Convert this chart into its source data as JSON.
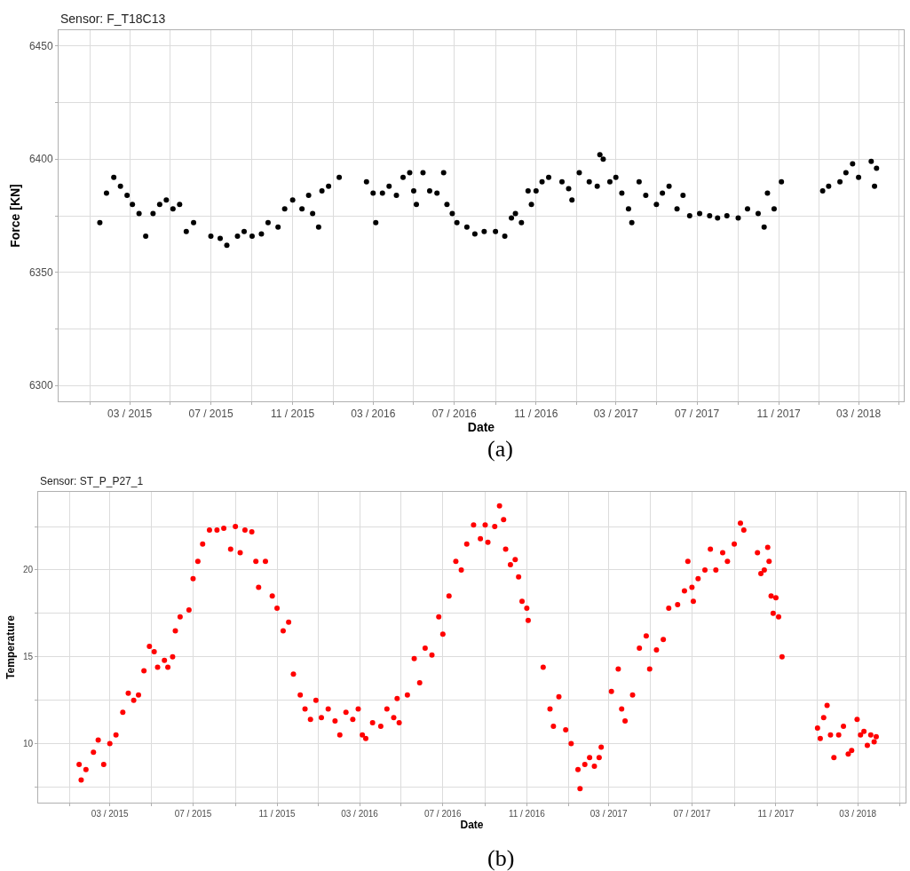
{
  "chart_data": [
    {
      "type": "scatter",
      "title": "Sensor: F_T18C13",
      "xlabel": "Date",
      "ylabel": "Force [KN]",
      "annotations": [
        "(a)"
      ],
      "grid": true,
      "marker": "circle",
      "xlim": [
        "2014-11-14",
        "2018-05-08"
      ],
      "ylim": [
        6293,
        6457
      ],
      "xticks": [
        {
          "value": "2015-01-01",
          "label": null
        },
        {
          "value": "2015-03-01",
          "label": "03 / 2015"
        },
        {
          "value": "2015-05-01",
          "label": null
        },
        {
          "value": "2015-07-01",
          "label": "07 / 2015"
        },
        {
          "value": "2015-09-01",
          "label": null
        },
        {
          "value": "2015-11-01",
          "label": "11 / 2015"
        },
        {
          "value": "2016-01-01",
          "label": null
        },
        {
          "value": "2016-03-01",
          "label": "03 / 2016"
        },
        {
          "value": "2016-05-01",
          "label": null
        },
        {
          "value": "2016-07-01",
          "label": "07 / 2016"
        },
        {
          "value": "2016-09-01",
          "label": null
        },
        {
          "value": "2016-11-01",
          "label": "11 / 2016"
        },
        {
          "value": "2017-01-01",
          "label": null
        },
        {
          "value": "2017-03-01",
          "label": "03 / 2017"
        },
        {
          "value": "2017-05-01",
          "label": null
        },
        {
          "value": "2017-07-01",
          "label": "07 / 2017"
        },
        {
          "value": "2017-09-01",
          "label": null
        },
        {
          "value": "2017-11-01",
          "label": "11 / 2017"
        },
        {
          "value": "2018-01-01",
          "label": null
        },
        {
          "value": "2018-03-01",
          "label": "03 / 2018"
        },
        {
          "value": "2018-05-01",
          "label": null
        }
      ],
      "yticks": [
        6300,
        {
          "value": 6325,
          "label": null
        },
        6350,
        {
          "value": 6375,
          "label": null
        },
        6400,
        {
          "value": 6425,
          "label": null
        },
        6450
      ],
      "series": [
        {
          "color": "#000000",
          "x": [
            "2015-01-15",
            "2015-01-25",
            "2015-02-05",
            "2015-02-15",
            "2015-02-25",
            "2015-03-05",
            "2015-03-15",
            "2015-03-25",
            "2015-04-05",
            "2015-04-15",
            "2015-04-25",
            "2015-05-05",
            "2015-05-15",
            "2015-05-25",
            "2015-06-05",
            "2015-07-01",
            "2015-07-15",
            "2015-07-25",
            "2015-08-10",
            "2015-08-20",
            "2015-09-01",
            "2015-09-15",
            "2015-09-25",
            "2015-10-10",
            "2015-10-20",
            "2015-11-01",
            "2015-11-15",
            "2015-11-25",
            "2015-12-01",
            "2015-12-10",
            "2015-12-15",
            "2015-12-25",
            "2016-01-10",
            "2016-02-20",
            "2016-03-01",
            "2016-03-05",
            "2016-03-15",
            "2016-03-25",
            "2016-04-05",
            "2016-04-15",
            "2016-04-25",
            "2016-05-01",
            "2016-05-05",
            "2016-05-15",
            "2016-05-25",
            "2016-06-05",
            "2016-06-15",
            "2016-06-20",
            "2016-06-28",
            "2016-07-05",
            "2016-07-20",
            "2016-08-01",
            "2016-08-15",
            "2016-09-01",
            "2016-09-15",
            "2016-09-25",
            "2016-10-01",
            "2016-10-10",
            "2016-10-20",
            "2016-10-25",
            "2016-11-01",
            "2016-11-10",
            "2016-11-20",
            "2016-12-10",
            "2016-12-20",
            "2016-12-25",
            "2017-01-05",
            "2017-01-20",
            "2017-02-01",
            "2017-02-05",
            "2017-02-10",
            "2017-02-20",
            "2017-03-01",
            "2017-03-10",
            "2017-03-20",
            "2017-03-25",
            "2017-04-05",
            "2017-04-15",
            "2017-05-01",
            "2017-05-10",
            "2017-05-20",
            "2017-06-01",
            "2017-06-10",
            "2017-06-20",
            "2017-07-05",
            "2017-07-20",
            "2017-08-01",
            "2017-08-15",
            "2017-09-01",
            "2017-09-15",
            "2017-10-01",
            "2017-10-10",
            "2017-10-15",
            "2017-10-25",
            "2017-11-05",
            "2018-01-06",
            "2018-01-15",
            "2018-02-01",
            "2018-02-10",
            "2018-02-20",
            "2018-03-01",
            "2018-03-20",
            "2018-03-25",
            "2018-03-28"
          ],
          "values": [
            6372,
            6385,
            6392,
            6388,
            6384,
            6380,
            6376,
            6366,
            6376,
            6380,
            6382,
            6378,
            6380,
            6368,
            6372,
            6366,
            6365,
            6362,
            6366,
            6368,
            6366,
            6367,
            6372,
            6370,
            6378,
            6382,
            6378,
            6384,
            6376,
            6370,
            6386,
            6388,
            6392,
            6390,
            6385,
            6372,
            6385,
            6388,
            6384,
            6392,
            6394,
            6386,
            6380,
            6394,
            6386,
            6385,
            6394,
            6380,
            6376,
            6372,
            6370,
            6367,
            6368,
            6368,
            6366,
            6374,
            6376,
            6372,
            6386,
            6380,
            6386,
            6390,
            6392,
            6390,
            6387,
            6382,
            6394,
            6390,
            6388,
            6402,
            6400,
            6390,
            6392,
            6385,
            6378,
            6372,
            6390,
            6384,
            6380,
            6385,
            6388,
            6378,
            6384,
            6375,
            6376,
            6375,
            6374,
            6375,
            6374,
            6378,
            6376,
            6370,
            6385,
            6378,
            6390,
            6386,
            6388,
            6390,
            6394,
            6398,
            6392,
            6399,
            6388,
            6396
          ]
        }
      ]
    },
    {
      "type": "scatter",
      "title": "Sensor: ST_P_P27_1",
      "xlabel": "Date",
      "ylabel": "Temperature",
      "annotations": [
        "(b)"
      ],
      "grid": true,
      "marker": "circle",
      "xlim": [
        "2014-11-16",
        "2018-05-10"
      ],
      "ylim": [
        6.6,
        24.5
      ],
      "xticks": [
        {
          "value": "2015-01-01",
          "label": null
        },
        {
          "value": "2015-03-01",
          "label": "03 / 2015"
        },
        {
          "value": "2015-05-01",
          "label": null
        },
        {
          "value": "2015-07-01",
          "label": "07 / 2015"
        },
        {
          "value": "2015-09-01",
          "label": null
        },
        {
          "value": "2015-11-01",
          "label": "11 / 2015"
        },
        {
          "value": "2016-01-01",
          "label": null
        },
        {
          "value": "2016-03-01",
          "label": "03 / 2016"
        },
        {
          "value": "2016-05-01",
          "label": null
        },
        {
          "value": "2016-07-01",
          "label": "07 / 2016"
        },
        {
          "value": "2016-09-01",
          "label": null
        },
        {
          "value": "2016-11-01",
          "label": "11 / 2016"
        },
        {
          "value": "2017-01-01",
          "label": null
        },
        {
          "value": "2017-03-01",
          "label": "03 / 2017"
        },
        {
          "value": "2017-05-01",
          "label": null
        },
        {
          "value": "2017-07-01",
          "label": "07 / 2017"
        },
        {
          "value": "2017-09-01",
          "label": null
        },
        {
          "value": "2017-11-01",
          "label": "11 / 2017"
        },
        {
          "value": "2018-01-01",
          "label": null
        },
        {
          "value": "2018-03-01",
          "label": "03 / 2018"
        },
        {
          "value": "2018-05-01",
          "label": null
        }
      ],
      "yticks": [
        {
          "value": 7.5,
          "label": null
        },
        10,
        {
          "value": 12.5,
          "label": null
        },
        15,
        {
          "value": 17.5,
          "label": null
        },
        20,
        {
          "value": 22.5,
          "label": null
        }
      ],
      "series": [
        {
          "color": "#ff0000",
          "x": [
            "2015-01-15",
            "2015-01-18",
            "2015-01-25",
            "2015-02-05",
            "2015-02-12",
            "2015-02-20",
            "2015-03-01",
            "2015-03-10",
            "2015-03-20",
            "2015-03-28",
            "2015-04-05",
            "2015-04-12",
            "2015-04-20",
            "2015-04-28",
            "2015-05-05",
            "2015-05-10",
            "2015-05-20",
            "2015-05-25",
            "2015-06-01",
            "2015-06-05",
            "2015-06-12",
            "2015-06-25",
            "2015-07-01",
            "2015-07-08",
            "2015-07-15",
            "2015-07-25",
            "2015-08-05",
            "2015-08-15",
            "2015-08-25",
            "2015-09-01",
            "2015-09-08",
            "2015-09-15",
            "2015-09-25",
            "2015-10-01",
            "2015-10-05",
            "2015-10-15",
            "2015-10-25",
            "2015-11-01",
            "2015-11-10",
            "2015-11-18",
            "2015-11-25",
            "2015-12-05",
            "2015-12-12",
            "2015-12-20",
            "2015-12-28",
            "2016-01-05",
            "2016-01-15",
            "2016-01-25",
            "2016-02-01",
            "2016-02-10",
            "2016-02-20",
            "2016-02-28",
            "2016-03-05",
            "2016-03-10",
            "2016-03-20",
            "2016-04-01",
            "2016-04-10",
            "2016-04-20",
            "2016-04-25",
            "2016-04-28",
            "2016-05-10",
            "2016-05-20",
            "2016-05-28",
            "2016-06-05",
            "2016-06-15",
            "2016-06-25",
            "2016-07-01",
            "2016-07-10",
            "2016-07-20",
            "2016-07-28",
            "2016-08-05",
            "2016-08-15",
            "2016-08-25",
            "2016-09-01",
            "2016-09-05",
            "2016-09-15",
            "2016-09-22",
            "2016-09-28",
            "2016-10-01",
            "2016-10-08",
            "2016-10-15",
            "2016-10-20",
            "2016-10-25",
            "2016-11-01",
            "2016-11-03",
            "2016-11-25",
            "2016-12-05",
            "2016-12-10",
            "2016-12-18",
            "2016-12-28",
            "2017-01-05",
            "2017-01-15",
            "2017-01-18",
            "2017-01-25",
            "2017-02-01",
            "2017-02-08",
            "2017-02-15",
            "2017-02-18",
            "2017-03-05",
            "2017-03-15",
            "2017-03-20",
            "2017-03-25",
            "2017-04-05",
            "2017-04-15",
            "2017-04-25",
            "2017-04-30",
            "2017-05-10",
            "2017-05-20",
            "2017-05-28",
            "2017-06-10",
            "2017-06-20",
            "2017-06-25",
            "2017-07-01",
            "2017-07-03",
            "2017-07-10",
            "2017-07-20",
            "2017-07-28",
            "2017-08-05",
            "2017-08-15",
            "2017-08-22",
            "2017-09-01",
            "2017-09-10",
            "2017-09-15",
            "2017-10-05",
            "2017-10-10",
            "2017-10-15",
            "2017-10-20",
            "2017-10-22",
            "2017-10-25",
            "2017-10-28",
            "2017-11-01",
            "2017-11-05",
            "2017-11-10",
            "2018-01-01",
            "2018-01-05",
            "2018-01-10",
            "2018-01-15",
            "2018-01-20",
            "2018-01-25",
            "2018-02-01",
            "2018-02-08",
            "2018-02-15",
            "2018-02-20",
            "2018-02-28",
            "2018-03-05",
            "2018-03-10",
            "2018-03-15",
            "2018-03-20",
            "2018-03-25",
            "2018-03-28"
          ],
          "values": [
            8.8,
            7.9,
            8.5,
            9.5,
            10.2,
            8.8,
            10.0,
            10.5,
            11.8,
            12.9,
            12.5,
            12.8,
            14.2,
            15.6,
            15.3,
            14.4,
            14.8,
            14.4,
            15.0,
            16.5,
            17.3,
            17.7,
            19.5,
            20.5,
            21.5,
            22.3,
            22.3,
            22.4,
            21.2,
            22.5,
            21.0,
            22.3,
            22.2,
            20.5,
            19.0,
            20.5,
            18.5,
            17.8,
            16.5,
            17.0,
            14.0,
            12.8,
            12.0,
            11.4,
            12.5,
            11.5,
            12.0,
            11.3,
            10.5,
            11.8,
            11.4,
            12.0,
            10.5,
            10.3,
            11.2,
            11.0,
            12.0,
            11.5,
            12.6,
            11.2,
            12.8,
            14.9,
            13.5,
            15.5,
            15.1,
            17.3,
            16.3,
            18.5,
            20.5,
            20.0,
            21.5,
            22.6,
            21.8,
            22.6,
            21.6,
            22.5,
            23.7,
            22.9,
            21.2,
            20.3,
            20.6,
            19.6,
            18.2,
            17.8,
            17.1,
            14.4,
            12.0,
            11.0,
            12.7,
            10.8,
            10.0,
            8.5,
            7.4,
            8.8,
            9.2,
            8.7,
            9.2,
            9.8,
            13.0,
            14.3,
            12.0,
            11.3,
            12.8,
            15.5,
            16.2,
            14.3,
            15.4,
            16.0,
            17.8,
            18.0,
            18.8,
            20.5,
            19.0,
            18.2,
            19.5,
            20.0,
            21.2,
            20.0,
            21.0,
            20.5,
            21.5,
            22.7,
            22.3,
            21.0,
            19.8,
            20.0,
            21.3,
            20.5,
            18.5,
            17.5,
            18.4,
            17.3,
            15.0,
            10.9,
            10.3,
            11.5,
            12.2,
            10.5,
            9.2,
            10.5,
            11.0,
            9.4,
            9.6,
            11.4,
            10.5,
            10.7,
            9.9,
            10.5,
            10.1,
            10.4
          ]
        }
      ]
    }
  ]
}
